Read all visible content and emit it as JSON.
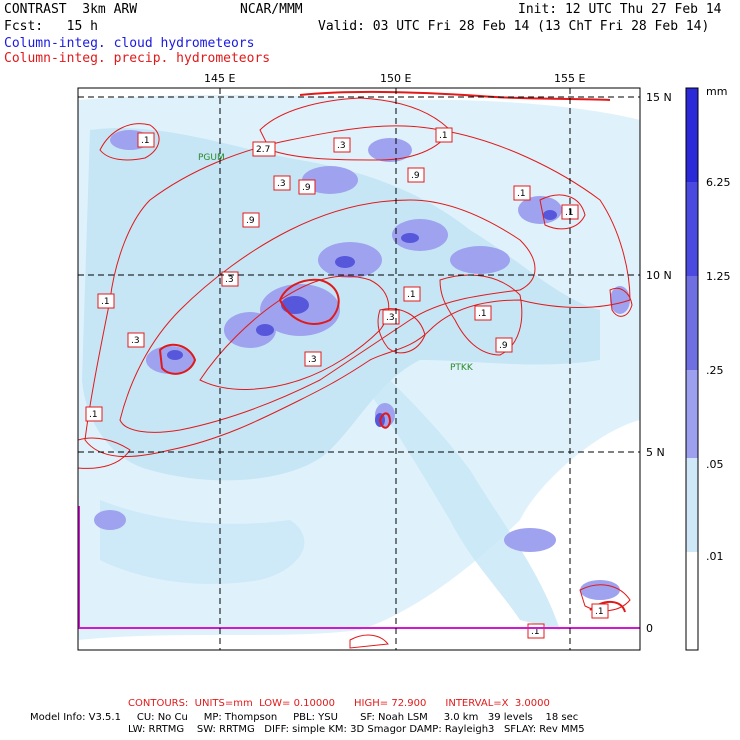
{
  "header": {
    "left_line1": "CONTRAST  3km ARW",
    "center_line1": "NCAR/MMM",
    "right_line1": "Init: 12 UTC Thu 27 Feb 14",
    "left_line2": "Fcst:   15 h",
    "right_line2": "Valid: 03 UTC Fri 28 Feb 14 (13 ChT Fri 28 Feb 14)",
    "field1": "Column-integ. cloud hydrometeors",
    "field2": "Column-integ. precip. hydrometeors"
  },
  "map": {
    "lon_labels": [
      "145 E",
      "150 E",
      "155 E"
    ],
    "lat_labels": [
      "15 N",
      "10 N",
      "5 N",
      "0"
    ],
    "stations": [
      "PGUM",
      "PTKK"
    ],
    "contour_labels": [
      ".1",
      ".3",
      "2.7",
      ".3",
      ".9",
      ".1",
      ".9",
      ".3",
      ".1",
      ".9",
      ".1",
      ".3",
      ".1",
      ".3",
      ".1",
      ".3",
      ".9",
      ".1",
      ".1",
      ".1",
      ".1"
    ]
  },
  "colorbar": {
    "unit": "mm",
    "tick_labels": [
      "6.25",
      "1.25",
      ".25",
      ".05",
      ".01"
    ],
    "colors": [
      "#2a2ad8",
      "#4a4ae0",
      "#6f6fe2",
      "#9da0ee",
      "#cfe8f8",
      "#e4f6fc",
      "#ffffff"
    ]
  },
  "footer": {
    "contours": "CONTOURS:  UNITS=mm  LOW= 0.10000      HIGH= 72.900      INTERVAL=X  3.0000",
    "model_line1": "Model Info: V3.5.1     CU: No Cu     MP: Thompson     PBL: YSU       SF: Noah LSM     3.0 km   39 levels    18 sec",
    "model_line2": "LW: RRTMG    SW: RRTMG   DIFF: simple KM: 3D Smagor DAMP: Rayleigh3   SFLAY: Rev MM5"
  }
}
